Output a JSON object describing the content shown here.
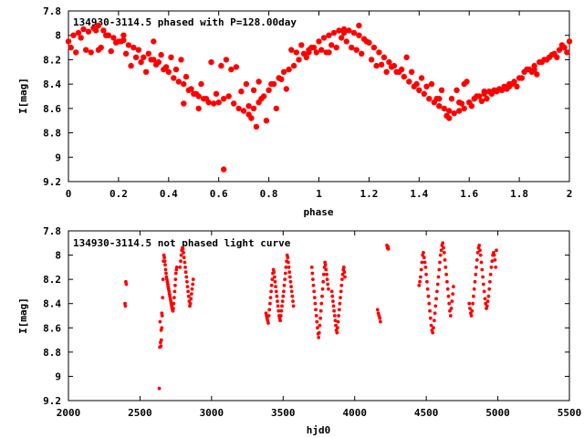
{
  "chart_data": [
    {
      "type": "scatter",
      "title": "134930-3114.5 phased with P=128.00day",
      "xlabel": "phase",
      "ylabel": "I[mag]",
      "xlim": [
        0,
        2
      ],
      "ylim": [
        7.8,
        9.2
      ],
      "y_inverted": true,
      "xticks": [
        "0",
        "0.2",
        "0.4",
        "0.6",
        "0.8",
        "1",
        "1.2",
        "1.4",
        "1.6",
        "1.8",
        "2"
      ],
      "yticks": [
        "7.8",
        "8",
        "8.2",
        "8.4",
        "8.6",
        "8.8",
        "9",
        "9.2"
      ],
      "marker": "filled-circle-large",
      "color": "#ff0000",
      "series": [
        {
          "x": [
            0.0,
            0.02,
            0.04,
            0.06,
            0.08,
            0.1,
            0.12,
            0.14,
            0.16,
            0.18,
            0.2,
            0.22,
            0.24,
            0.26,
            0.28,
            0.3,
            0.32,
            0.34,
            0.36,
            0.38,
            0.4,
            0.42,
            0.44,
            0.46,
            0.48,
            0.5,
            0.52,
            0.54,
            0.56,
            0.58,
            0.6,
            0.62,
            0.64,
            0.66,
            0.68,
            0.7,
            0.72,
            0.74,
            0.76,
            0.78,
            0.8,
            0.82,
            0.84,
            0.86,
            0.88,
            0.9,
            0.92,
            0.94,
            0.96,
            0.98,
            1.0,
            1.02,
            1.04,
            1.06,
            1.08,
            1.1,
            1.12,
            1.14,
            1.16,
            1.18,
            1.2,
            1.22,
            1.24,
            1.26,
            1.28,
            1.3,
            1.32,
            1.34,
            1.36,
            1.38,
            1.4,
            1.42,
            1.44,
            1.46,
            1.48,
            1.5,
            1.52,
            1.54,
            1.56,
            1.58,
            1.6,
            1.62,
            1.64,
            1.66,
            1.68,
            1.7,
            1.72,
            1.74,
            1.76,
            1.78,
            1.8,
            1.82,
            1.84,
            1.86,
            1.88,
            1.9,
            1.92,
            1.94,
            1.96,
            1.98,
            2.0,
            0.01,
            0.05,
            0.09,
            0.13,
            0.17,
            0.21,
            0.25,
            0.29,
            0.33,
            0.37,
            0.41,
            0.45,
            0.49,
            0.53,
            0.57,
            0.61,
            0.65,
            0.69,
            0.73,
            0.77,
            0.81,
            0.85,
            0.89,
            0.93,
            0.97,
            1.01,
            1.05,
            1.09,
            1.13,
            1.17,
            1.21,
            1.25,
            1.29,
            1.33,
            1.37,
            1.41,
            1.45,
            1.49,
            1.53,
            1.57,
            1.61,
            1.65,
            1.69,
            1.73,
            1.77,
            1.81,
            1.85,
            1.89,
            1.93,
            1.97,
            0.03,
            0.07,
            0.11,
            0.15,
            0.19,
            0.23,
            0.27,
            0.31,
            0.35,
            0.39,
            0.43,
            0.47,
            0.51,
            0.55,
            0.59,
            0.63,
            0.67,
            0.71,
            0.75,
            0.79,
            0.83,
            0.87,
            0.91,
            0.95,
            0.99,
            1.03,
            1.07,
            1.11,
            1.15,
            1.19,
            1.23,
            1.27,
            1.31,
            1.35,
            1.39,
            1.43,
            1.47,
            1.51,
            1.55,
            1.59,
            1.63,
            1.67,
            1.71,
            1.75,
            1.79,
            1.83,
            1.87,
            1.91,
            1.95,
            1.99,
            0.62,
            0.72,
            0.74,
            0.52,
            0.46,
            0.76,
            0.96,
            1.16,
            1.52,
            1.56,
            0.34,
            0.22,
            0.12,
            1.04,
            1.1,
            1.48,
            1.58,
            1.66,
            1.76,
            1.86
          ],
          "y": [
            8.05,
            8.0,
            7.98,
            7.95,
            7.97,
            7.94,
            7.92,
            7.96,
            8.0,
            8.02,
            8.05,
            8.04,
            8.08,
            8.1,
            8.12,
            8.18,
            8.15,
            8.2,
            8.22,
            8.28,
            8.3,
            8.35,
            8.38,
            8.4,
            8.45,
            8.48,
            8.5,
            8.52,
            8.55,
            8.56,
            8.55,
            8.52,
            8.5,
            8.56,
            8.6,
            8.62,
            8.65,
            8.6,
            8.55,
            8.5,
            8.45,
            8.4,
            8.35,
            8.3,
            8.28,
            8.25,
            8.2,
            8.15,
            8.12,
            8.1,
            8.05,
            8.02,
            8.0,
            7.98,
            7.96,
            7.95,
            7.96,
            7.98,
            8.0,
            8.03,
            8.06,
            8.1,
            8.14,
            8.18,
            8.22,
            8.25,
            8.3,
            8.34,
            8.38,
            8.42,
            8.45,
            8.48,
            8.52,
            8.55,
            8.58,
            8.6,
            8.62,
            8.64,
            8.62,
            8.6,
            8.55,
            8.52,
            8.5,
            8.48,
            8.46,
            8.45,
            8.44,
            8.42,
            8.4,
            8.38,
            8.35,
            8.3,
            8.28,
            8.25,
            8.22,
            8.2,
            8.18,
            8.15,
            8.12,
            8.1,
            8.05,
            8.1,
            8.02,
            8.14,
            8.1,
            8.13,
            8.05,
            8.25,
            8.22,
            8.2,
            8.16,
            8.18,
            8.2,
            8.44,
            8.4,
            8.22,
            8.25,
            8.28,
            8.46,
            8.68,
            8.52,
            8.4,
            8.36,
            8.12,
            8.08,
            8.1,
            8.12,
            8.08,
            8.02,
            8.1,
            8.15,
            8.2,
            8.24,
            8.26,
            8.28,
            8.3,
            8.35,
            8.4,
            8.45,
            8.52,
            8.56,
            8.58,
            8.54,
            8.48,
            8.45,
            8.4,
            8.35,
            8.3,
            8.22,
            8.16,
            8.08,
            8.14,
            8.12,
            7.96,
            8.0,
            8.06,
            8.15,
            8.18,
            8.3,
            8.24,
            8.26,
            8.28,
            8.34,
            8.48,
            8.52,
            8.48,
            8.2,
            8.26,
            8.4,
            8.75,
            8.7,
            8.6,
            8.44,
            8.14,
            8.18,
            8.14,
            8.14,
            8.1,
            8.05,
            8.12,
            8.05,
            8.25,
            8.3,
            8.3,
            8.18,
            8.4,
            8.42,
            8.52,
            8.66,
            8.45,
            8.38,
            8.5,
            8.52,
            8.46,
            8.44,
            8.42,
            8.28,
            8.32,
            8.2,
            8.18,
            8.14,
            9.1,
            8.58,
            8.45,
            8.6,
            8.56,
            8.38,
            8.14,
            7.92,
            8.68,
            8.55,
            8.05,
            8.0,
            8.12,
            8.14,
            7.98,
            8.52,
            8.4,
            8.46,
            8.42,
            8.28
          ]
        }
      ]
    },
    {
      "type": "scatter",
      "title": "134930-3114.5 not phased light curve",
      "xlabel": "hjd0",
      "ylabel": "I[mag]",
      "xlim": [
        2000,
        5500
      ],
      "ylim": [
        7.8,
        9.2
      ],
      "y_inverted": true,
      "xticks": [
        "2000",
        "2500",
        "3000",
        "3500",
        "4000",
        "4500",
        "5000",
        "5500"
      ],
      "yticks": [
        "7.8",
        "8",
        "8.2",
        "8.4",
        "8.6",
        "8.8",
        "9",
        "9.2"
      ],
      "marker": "filled-circle-small",
      "color": "#ff0000",
      "series": [
        {
          "x": [
            2395,
            2398,
            2401,
            2404,
            2640,
            2643,
            2646,
            2649,
            2652,
            2655,
            2658,
            2661,
            2664,
            2667,
            2670,
            2673,
            2676,
            2679,
            2682,
            2685,
            2688,
            2691,
            2694,
            2697,
            2700,
            2703,
            2706,
            2709,
            2712,
            2715,
            2718,
            2721,
            2724,
            2727,
            2730,
            2733,
            2736,
            2739,
            2742,
            2745,
            2748,
            2751,
            2754,
            2757,
            2635,
            2638,
            2648,
            2652,
            2780,
            2784,
            2788,
            2792,
            2796,
            2800,
            2804,
            2808,
            2812,
            2816,
            2820,
            2824,
            2828,
            2832,
            2836,
            2840,
            2844,
            2848,
            2852,
            2856,
            2860,
            2864,
            2868,
            2872,
            3380,
            3384,
            3388,
            3392,
            3396,
            3400,
            3404,
            3408,
            3412,
            3416,
            3420,
            3424,
            3428,
            3432,
            3436,
            3440,
            3444,
            3448,
            3452,
            3456,
            3460,
            3464,
            3468,
            3472,
            3476,
            3480,
            3484,
            3488,
            3492,
            3496,
            3500,
            3504,
            3508,
            3512,
            3516,
            3520,
            3524,
            3528,
            3532,
            3536,
            3540,
            3544,
            3548,
            3552,
            3556,
            3560,
            3564,
            3568,
            3572,
            3700,
            3704,
            3708,
            3712,
            3716,
            3720,
            3724,
            3728,
            3732,
            3736,
            3740,
            3744,
            3748,
            3752,
            3756,
            3760,
            3764,
            3768,
            3772,
            3776,
            3780,
            3784,
            3788,
            3792,
            3796,
            3800,
            3804,
            3808,
            3812,
            3816,
            3840,
            3844,
            3848,
            3852,
            3856,
            3860,
            3864,
            3868,
            3872,
            3876,
            3880,
            3884,
            3888,
            3892,
            3896,
            3900,
            3904,
            3908,
            3912,
            3916,
            3920,
            3924,
            3928,
            3932,
            4160,
            4165,
            4170,
            4175,
            4180,
            4225,
            4228,
            4232,
            4235,
            4450,
            4455,
            4460,
            4465,
            4470,
            4475,
            4480,
            4485,
            4490,
            4495,
            4500,
            4505,
            4510,
            4515,
            4520,
            4525,
            4530,
            4535,
            4540,
            4545,
            4550,
            4555,
            4560,
            4565,
            4570,
            4575,
            4580,
            4585,
            4590,
            4595,
            4600,
            4605,
            4610,
            4615,
            4620,
            4625,
            4630,
            4635,
            4640,
            4645,
            4650,
            4655,
            4660,
            4665,
            4670,
            4675,
            4680,
            4685,
            4690,
            4800,
            4805,
            4810,
            4815,
            4820,
            4825,
            4830,
            4835,
            4840,
            4845,
            4850,
            4855,
            4860,
            4865,
            4870,
            4875,
            4880,
            4885,
            4890,
            4895,
            4900,
            4905,
            4910,
            4915,
            4920,
            4925,
            4930,
            4935,
            4940,
            4945,
            4950,
            4955,
            4960,
            4965,
            4970,
            4975,
            4980,
            4985,
            4990
          ],
          "y": [
            8.4,
            8.42,
            8.22,
            8.24,
            8.55,
            8.72,
            8.75,
            8.7,
            8.6,
            8.5,
            8.35,
            8.2,
            8.05,
            8.0,
            8.02,
            8.05,
            8.08,
            8.12,
            8.15,
            8.18,
            8.2,
            8.22,
            8.24,
            8.26,
            8.28,
            8.3,
            8.32,
            8.34,
            8.36,
            8.38,
            8.4,
            8.42,
            8.44,
            8.45,
            8.46,
            8.44,
            8.4,
            8.35,
            8.3,
            8.25,
            8.2,
            8.15,
            8.12,
            8.1,
            9.1,
            8.76,
            8.62,
            8.48,
            8.1,
            8.05,
            8.0,
            7.96,
            7.94,
            7.95,
            7.98,
            8.02,
            8.06,
            8.1,
            8.14,
            8.18,
            8.22,
            8.26,
            8.3,
            8.34,
            8.38,
            8.42,
            8.4,
            8.36,
            8.32,
            8.28,
            8.24,
            8.2,
            8.48,
            8.5,
            8.52,
            8.54,
            8.56,
            8.5,
            8.45,
            8.4,
            8.35,
            8.3,
            8.25,
            8.2,
            8.15,
            8.12,
            8.14,
            8.18,
            8.22,
            8.26,
            8.3,
            8.34,
            8.38,
            8.42,
            8.46,
            8.5,
            8.52,
            8.54,
            8.5,
            8.46,
            8.42,
            8.38,
            8.34,
            8.3,
            8.25,
            8.2,
            8.15,
            8.1,
            8.05,
            8.0,
            8.02,
            8.06,
            8.1,
            8.14,
            8.18,
            8.22,
            8.26,
            8.3,
            8.34,
            8.38,
            8.42,
            8.1,
            8.15,
            8.2,
            8.25,
            8.3,
            8.35,
            8.4,
            8.45,
            8.5,
            8.55,
            8.6,
            8.65,
            8.68,
            8.64,
            8.58,
            8.52,
            8.46,
            8.4,
            8.34,
            8.28,
            8.22,
            8.16,
            8.1,
            8.06,
            8.08,
            8.12,
            8.16,
            8.2,
            8.24,
            8.28,
            8.3,
            8.34,
            8.38,
            8.42,
            8.46,
            8.5,
            8.54,
            8.58,
            8.62,
            8.64,
            8.6,
            8.55,
            8.5,
            8.45,
            8.4,
            8.35,
            8.3,
            8.25,
            8.2,
            8.16,
            8.12,
            8.1,
            8.14,
            8.18,
            8.45,
            8.48,
            8.5,
            8.52,
            8.55,
            7.92,
            7.94,
            7.93,
            7.95,
            8.25,
            8.22,
            8.18,
            8.12,
            8.06,
            8.0,
            7.98,
            8.02,
            8.06,
            8.1,
            8.16,
            8.22,
            8.28,
            8.34,
            8.4,
            8.46,
            8.52,
            8.58,
            8.62,
            8.64,
            8.6,
            8.54,
            8.48,
            8.42,
            8.36,
            8.3,
            8.24,
            8.18,
            8.12,
            8.06,
            8.0,
            7.96,
            7.92,
            7.9,
            7.94,
            7.98,
            8.04,
            8.1,
            8.16,
            8.22,
            8.28,
            8.34,
            8.4,
            8.46,
            8.5,
            8.44,
            8.38,
            8.32,
            8.26,
            8.4,
            8.44,
            8.48,
            8.5,
            8.46,
            8.4,
            8.34,
            8.28,
            8.22,
            8.16,
            8.1,
            8.04,
            7.98,
            7.94,
            7.92,
            7.96,
            8.0,
            8.06,
            8.12,
            8.18,
            8.24,
            8.3,
            8.36,
            8.4,
            8.44,
            8.42,
            8.38,
            8.34,
            8.28,
            8.22,
            8.16,
            8.1,
            8.05,
            8.0,
            7.98,
            8.0,
            8.04,
            8.1,
            7.96
          ]
        }
      ]
    }
  ]
}
